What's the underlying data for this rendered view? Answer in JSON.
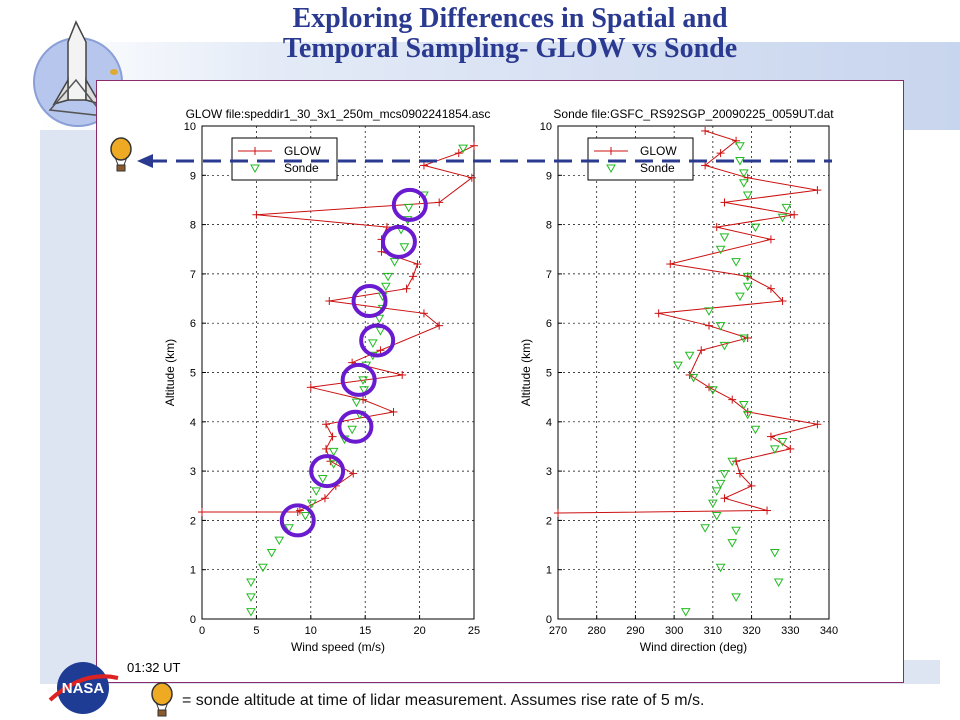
{
  "slide": {
    "title_line1": "Exploring Differences in Spatial and",
    "title_line2": "Temporal Sampling- GLOW vs Sonde",
    "time_label": "01:32 UT",
    "footer": "= sonde altitude at time of lidar measurement.  Assumes rise rate of 5 m/s.",
    "nasa_text": "NASA",
    "colors": {
      "title": "#2b3a91",
      "glow": "#cc1111",
      "sonde": "#22bb22",
      "circles": "#6a1bd0",
      "dashed_arrow": "#2a3a90"
    },
    "icons": [
      "rocket-logo-icon",
      "nasa-logo-icon",
      "balloon-icon"
    ]
  },
  "chart_data": [
    {
      "type": "line",
      "title": "GLOW file:speddir1_30_3x1_250m_mcs0902241854.asc",
      "xlabel": "Wind speed (m/s)",
      "ylabel": "Altitude (km)",
      "xlim": [
        0,
        25
      ],
      "ylim": [
        0,
        10
      ],
      "xticks": [
        0,
        5,
        10,
        15,
        20,
        25
      ],
      "yticks": [
        0,
        1,
        2,
        3,
        4,
        5,
        6,
        7,
        8,
        9,
        10
      ],
      "grid": true,
      "legend": {
        "position": "top-left",
        "entries": [
          "GLOW",
          "Sonde"
        ]
      },
      "series": [
        {
          "name": "GLOW",
          "marker": "+",
          "points": [
            [
              0,
              2.17
            ],
            [
              8.8,
              2.17
            ],
            [
              9,
              2.2
            ],
            [
              11.3,
              2.45
            ],
            [
              12.3,
              2.7
            ],
            [
              13.9,
              2.95
            ],
            [
              11.8,
              3.2
            ],
            [
              11.4,
              3.45
            ],
            [
              12,
              3.7
            ],
            [
              11.4,
              3.95
            ],
            [
              17.6,
              4.2
            ],
            [
              14.8,
              4.45
            ],
            [
              10,
              4.7
            ],
            [
              18.4,
              4.95
            ],
            [
              13.8,
              5.2
            ],
            [
              16.4,
              5.45
            ],
            [
              21.8,
              5.95
            ],
            [
              20.4,
              6.2
            ],
            [
              11.7,
              6.45
            ],
            [
              18.8,
              6.7
            ],
            [
              19.4,
              6.95
            ],
            [
              19.8,
              7.2
            ],
            [
              16.5,
              7.45
            ],
            [
              16.5,
              7.7
            ],
            [
              17,
              7.95
            ],
            [
              5,
              8.2
            ],
            [
              21.8,
              8.45
            ],
            [
              24.8,
              8.95
            ],
            [
              20.4,
              9.2
            ],
            [
              23.6,
              9.45
            ],
            [
              25,
              9.6
            ]
          ]
        },
        {
          "name": "Sonde",
          "marker": "triangle-down",
          "points": [
            [
              4.5,
              0.15
            ],
            [
              4.5,
              0.45
            ],
            [
              4.5,
              0.75
            ],
            [
              5.6,
              1.05
            ],
            [
              6.4,
              1.35
            ],
            [
              7.1,
              1.6
            ],
            [
              8,
              1.85
            ],
            [
              9.5,
              2.1
            ],
            [
              10.1,
              2.35
            ],
            [
              10.5,
              2.6
            ],
            [
              11.1,
              2.85
            ],
            [
              12.1,
              3.15
            ],
            [
              12.1,
              3.4
            ],
            [
              13.1,
              3.65
            ],
            [
              13.8,
              3.85
            ],
            [
              14.5,
              4.15
            ],
            [
              14.2,
              4.4
            ],
            [
              14.9,
              4.65
            ],
            [
              14.8,
              4.85
            ],
            [
              15.1,
              5.15
            ],
            [
              15.7,
              5.35
            ],
            [
              15.7,
              5.6
            ],
            [
              16.4,
              5.85
            ],
            [
              16.3,
              6.1
            ],
            [
              16.6,
              6.3
            ],
            [
              16.6,
              6.55
            ],
            [
              16.9,
              6.75
            ],
            [
              17.1,
              6.95
            ],
            [
              17.7,
              7.25
            ],
            [
              18.6,
              7.55
            ],
            [
              18.3,
              7.9
            ],
            [
              18.9,
              8.1
            ],
            [
              19,
              8.35
            ],
            [
              20.4,
              8.6
            ],
            [
              24,
              9.55
            ]
          ]
        }
      ]
    },
    {
      "type": "line",
      "title": "Sonde file:GSFC_RS92SGP_20090225_0059UT.dat",
      "xlabel": "Wind direction (deg)",
      "ylabel": "Altitude (km)",
      "xlim": [
        270,
        340
      ],
      "ylim": [
        0,
        10
      ],
      "xticks": [
        270,
        280,
        290,
        300,
        310,
        320,
        330,
        340
      ],
      "yticks": [
        0,
        1,
        2,
        3,
        4,
        5,
        6,
        7,
        8,
        9,
        10
      ],
      "grid": true,
      "legend": {
        "position": "top-left",
        "entries": [
          "GLOW",
          "Sonde"
        ]
      },
      "series": [
        {
          "name": "GLOW",
          "marker": "+",
          "points": [
            [
              270,
              2.15
            ],
            [
              324,
              2.2
            ],
            [
              313,
              2.45
            ],
            [
              320,
              2.7
            ],
            [
              317,
              2.95
            ],
            [
              316,
              3.2
            ],
            [
              330,
              3.45
            ],
            [
              325,
              3.7
            ],
            [
              337,
              3.95
            ],
            [
              319,
              4.2
            ],
            [
              315,
              4.45
            ],
            [
              309,
              4.7
            ],
            [
              304,
              4.95
            ],
            [
              307,
              5.45
            ],
            [
              319,
              5.7
            ],
            [
              309,
              5.95
            ],
            [
              296,
              6.2
            ],
            [
              328,
              6.45
            ],
            [
              325,
              6.7
            ],
            [
              319,
              6.95
            ],
            [
              299,
              7.2
            ],
            [
              325,
              7.7
            ],
            [
              311,
              7.95
            ],
            [
              331,
              8.2
            ],
            [
              313,
              8.45
            ],
            [
              337,
              8.7
            ],
            [
              319,
              8.95
            ],
            [
              308,
              9.2
            ],
            [
              312,
              9.45
            ],
            [
              316,
              9.7
            ],
            [
              308,
              9.9
            ]
          ]
        },
        {
          "name": "Sonde",
          "marker": "triangle-down",
          "points": [
            [
              303,
              0.15
            ],
            [
              316,
              0.45
            ],
            [
              327,
              0.75
            ],
            [
              312,
              1.05
            ],
            [
              326,
              1.35
            ],
            [
              315,
              1.55
            ],
            [
              316,
              1.8
            ],
            [
              308,
              1.85
            ],
            [
              311,
              2.1
            ],
            [
              310,
              2.35
            ],
            [
              311,
              2.6
            ],
            [
              312,
              2.75
            ],
            [
              313,
              2.95
            ],
            [
              315,
              3.2
            ],
            [
              326,
              3.45
            ],
            [
              328,
              3.6
            ],
            [
              321,
              3.85
            ],
            [
              319,
              4.15
            ],
            [
              318,
              4.35
            ],
            [
              310,
              4.65
            ],
            [
              305,
              4.9
            ],
            [
              301,
              5.15
            ],
            [
              304,
              5.35
            ],
            [
              313,
              5.55
            ],
            [
              318,
              5.7
            ],
            [
              312,
              5.95
            ],
            [
              309,
              6.25
            ],
            [
              317,
              6.55
            ],
            [
              319,
              6.75
            ],
            [
              319,
              6.95
            ],
            [
              316,
              7.25
            ],
            [
              312,
              7.5
            ],
            [
              313,
              7.75
            ],
            [
              321,
              7.95
            ],
            [
              328,
              8.15
            ],
            [
              329,
              8.35
            ],
            [
              319,
              8.6
            ],
            [
              318,
              8.85
            ],
            [
              318,
              9.05
            ],
            [
              317,
              9.3
            ],
            [
              317,
              9.6
            ]
          ]
        }
      ]
    }
  ]
}
